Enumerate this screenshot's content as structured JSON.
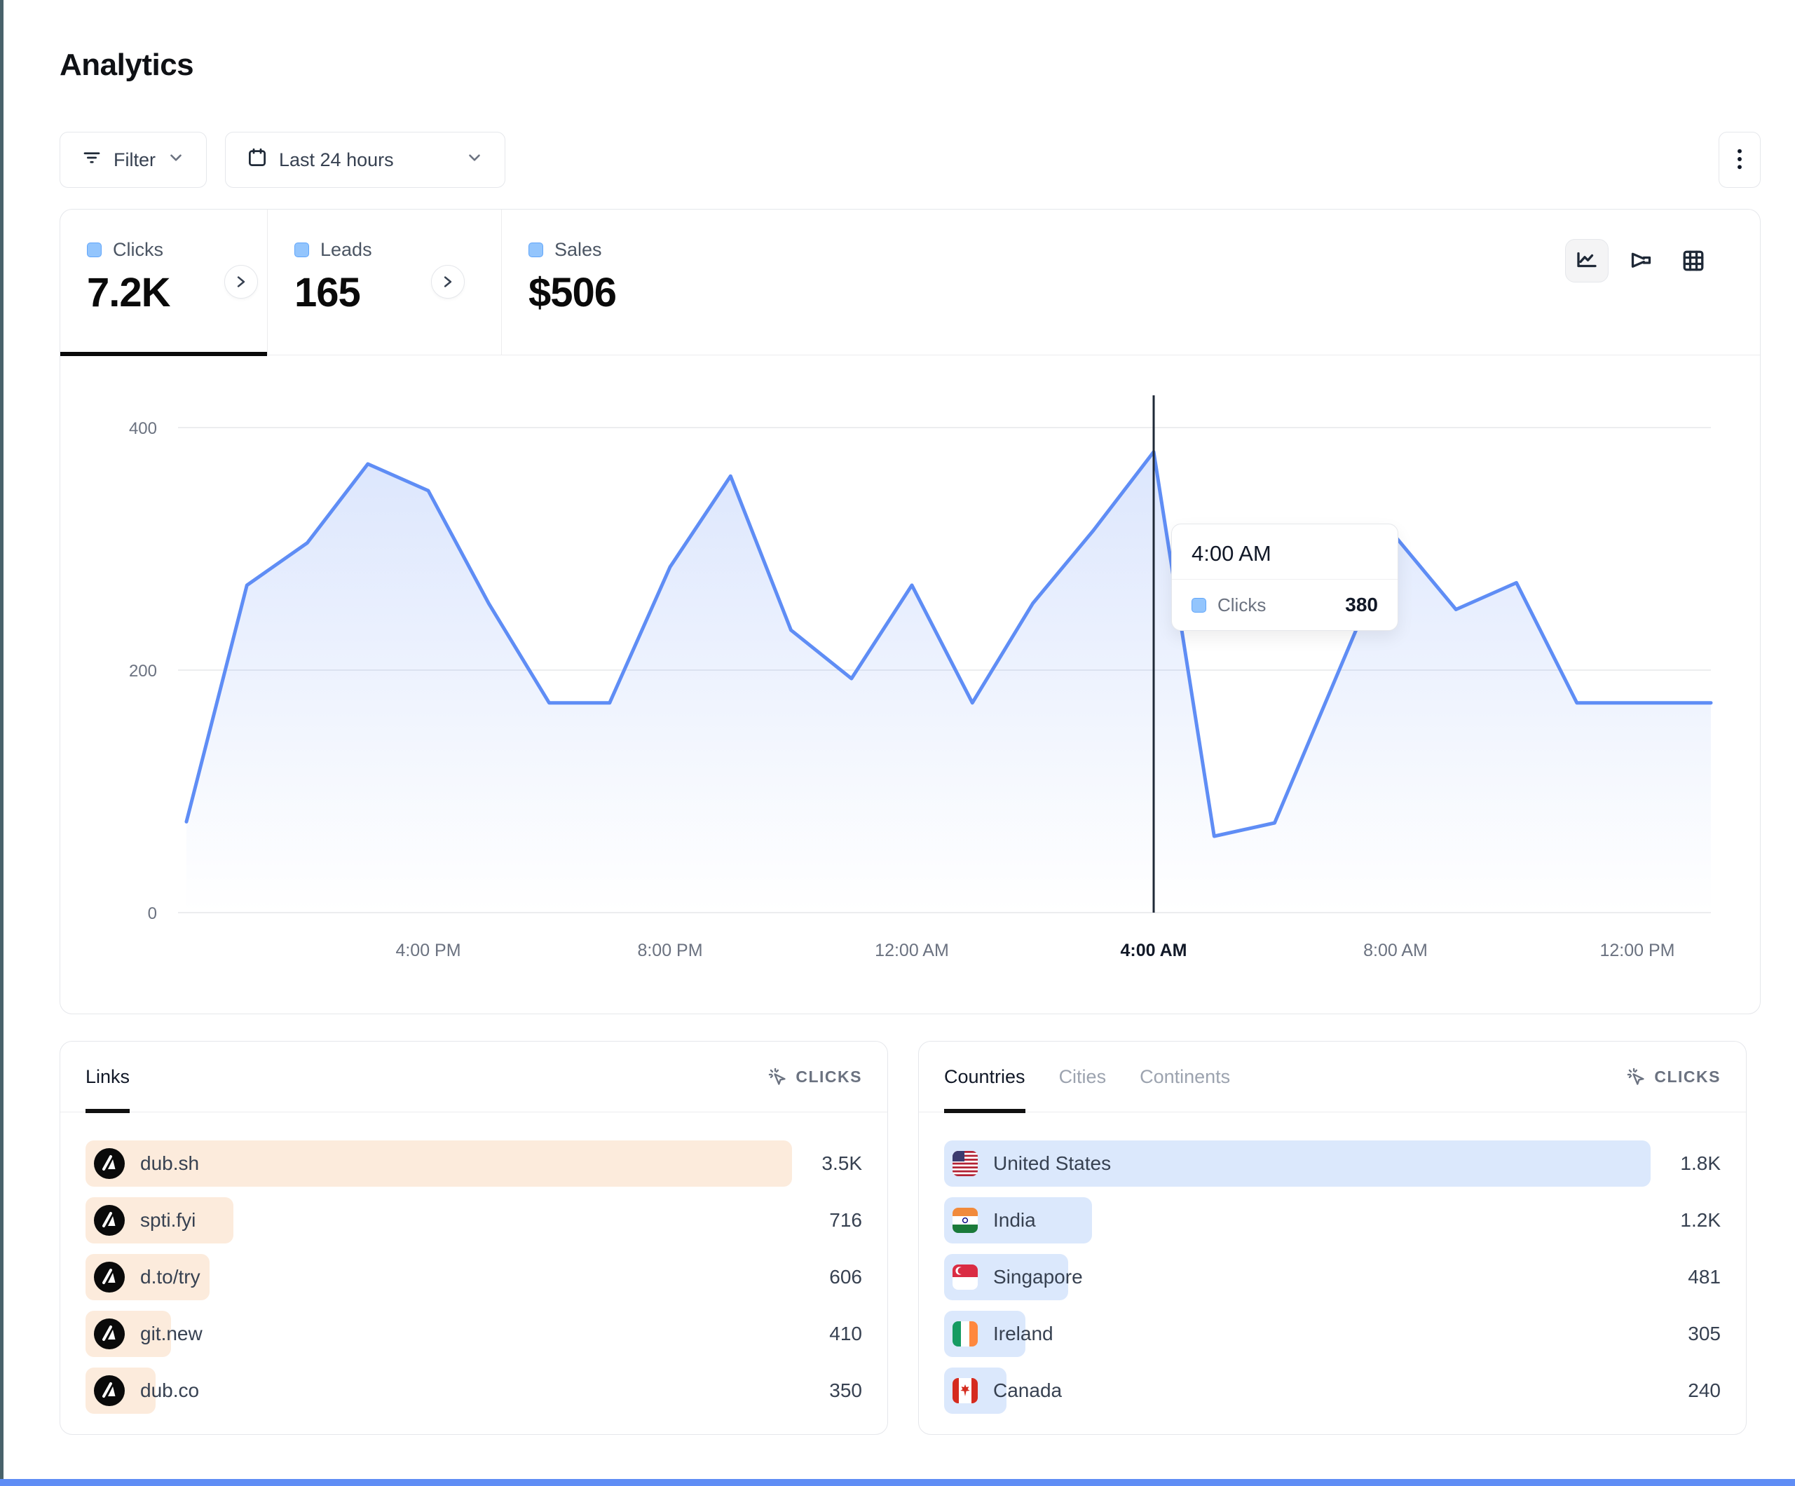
{
  "page": {
    "title": "Analytics"
  },
  "toolbar": {
    "filter": {
      "label": "Filter",
      "icon": "filter-lines-icon"
    },
    "date_range": {
      "label": "Last 24 hours",
      "icon": "calendar-icon"
    },
    "more_menu_icon": "kebab-vertical-icon"
  },
  "stats": {
    "tabs": [
      {
        "label": "Clicks",
        "value": "7.2K",
        "active": true
      },
      {
        "label": "Leads",
        "value": "165",
        "active": false
      },
      {
        "label": "Sales",
        "value": "$506",
        "active": false
      }
    ]
  },
  "chart_controls": {
    "icons": [
      "line-chart-icon",
      "funnel-icon",
      "grid-icon"
    ],
    "active": "line-chart-icon"
  },
  "chart_data": {
    "type": "area",
    "title": "Clicks over last 24 hours",
    "series": [
      {
        "name": "Clicks",
        "color": "#5f8df5",
        "values": [
          75,
          270,
          305,
          370,
          348,
          255,
          173,
          173,
          285,
          360,
          233,
          193,
          270,
          173,
          255,
          315,
          380,
          63,
          74,
          192,
          310,
          250,
          272,
          173,
          173
        ]
      }
    ],
    "x_start_label": "12:00 PM",
    "x_tick_labels": [
      "4:00 PM",
      "8:00 PM",
      "12:00 AM",
      "4:00 AM",
      "8:00 AM",
      "12:00 PM"
    ],
    "highlighted_tick": "4:00 AM",
    "points_per_tick": 4,
    "yticks": [
      0,
      200,
      400
    ],
    "ylim": [
      0,
      400
    ],
    "grid": "horizontal",
    "legend_position": "none",
    "crosshair_index": 16
  },
  "tooltip": {
    "time": "4:00 AM",
    "rows": [
      {
        "label": "Clicks",
        "value": "380"
      }
    ]
  },
  "links_panel": {
    "tab": "Links",
    "metric_label": "CLICKS",
    "metric_icon": "cursor-click-icon",
    "bar_color": "#fcebdc",
    "items": [
      {
        "label": "dub.sh",
        "value": "3.5K",
        "bar_pct": 91,
        "icon": "dub-logo"
      },
      {
        "label": "spti.fyi",
        "value": "716",
        "bar_pct": 19,
        "icon": "dub-logo"
      },
      {
        "label": "d.to/try",
        "value": "606",
        "bar_pct": 16,
        "icon": "dub-logo"
      },
      {
        "label": "git.new",
        "value": "410",
        "bar_pct": 11,
        "icon": "dub-logo"
      },
      {
        "label": "dub.co",
        "value": "350",
        "bar_pct": 9,
        "icon": "dub-logo"
      }
    ]
  },
  "countries_panel": {
    "tabs": [
      {
        "label": "Countries",
        "active": true
      },
      {
        "label": "Cities",
        "active": false
      },
      {
        "label": "Continents",
        "active": false
      }
    ],
    "metric_label": "CLICKS",
    "metric_icon": "cursor-click-icon",
    "bar_color": "#dbe8fc",
    "items": [
      {
        "label": "United States",
        "value": "1.8K",
        "bar_pct": 91,
        "flag": "us"
      },
      {
        "label": "India",
        "value": "1.2K",
        "bar_pct": 19,
        "flag": "in"
      },
      {
        "label": "Singapore",
        "value": "481",
        "bar_pct": 16,
        "flag": "sg"
      },
      {
        "label": "Ireland",
        "value": "305",
        "bar_pct": 10.5,
        "flag": "ie"
      },
      {
        "label": "Canada",
        "value": "240",
        "bar_pct": 8,
        "flag": "ca"
      }
    ]
  },
  "colors": {
    "accent_line": "#5f8df5",
    "legend_square_fill": "#93c5fd",
    "legend_square_border": "#60a5fa",
    "link_bar": "#fcebdc",
    "country_bar": "#dbe8fc",
    "grid_line": "#e6e7ea",
    "crosshair": "#1f2937",
    "axis_text": "#6b7280",
    "left_edge_strip": "#48626b",
    "bottom_edge_strip": "#5f8df5"
  }
}
